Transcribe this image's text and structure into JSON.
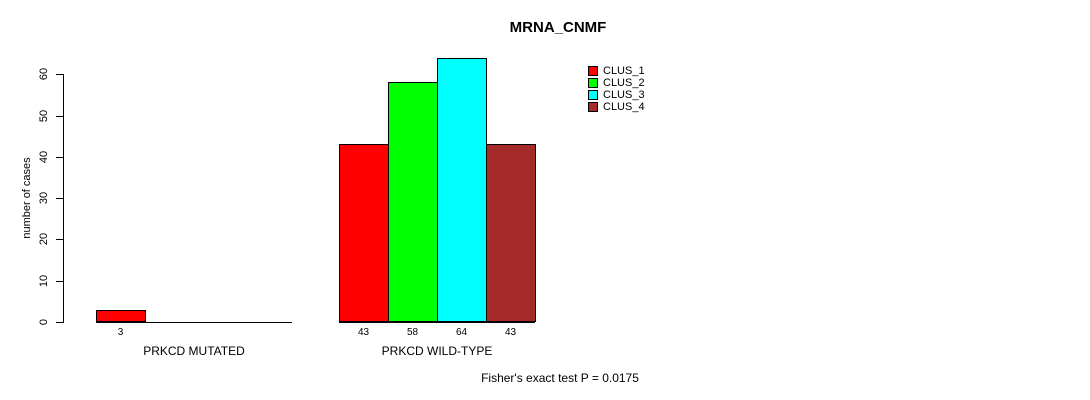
{
  "chart_data": {
    "type": "bar",
    "title": "MRNA_CNMF",
    "xlabel": "",
    "ylabel": "number of cases",
    "ylim": [
      0,
      60
    ],
    "yticks": [
      0,
      10,
      20,
      30,
      40,
      50,
      60
    ],
    "grid": false,
    "legend_position": "top-right",
    "categories": [
      "PRKCD MUTATED",
      "PRKCD WILD-TYPE"
    ],
    "series": [
      {
        "name": "CLUS_1",
        "color": "#FF0000",
        "values": [
          3,
          43
        ]
      },
      {
        "name": "CLUS_2",
        "color": "#00FF00",
        "values": [
          0,
          58
        ]
      },
      {
        "name": "CLUS_3",
        "color": "#00FFFF",
        "values": [
          0,
          64
        ]
      },
      {
        "name": "CLUS_4",
        "color": "#A52A2A",
        "values": [
          0,
          43
        ]
      }
    ],
    "bar_labels": [
      [
        "3",
        "",
        "",
        ""
      ],
      [
        "43",
        "58",
        "64",
        "43"
      ]
    ],
    "annotation": "Fisher's exact test P = 0.0175"
  }
}
